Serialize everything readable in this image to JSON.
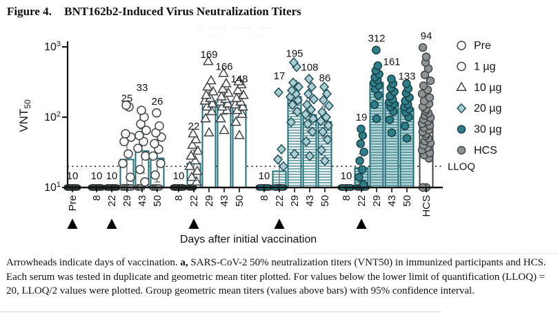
{
  "figure_label": "Figure 4.",
  "figure_title": "BNT162b2-Induced Virus Neutralization Titers",
  "artifact_marks": {
    "row1": ".. ....  ....  ...",
    "row2": "......        ......"
  },
  "caption": {
    "part1": "Arrowheads indicate days of vaccination. ",
    "panel": "a,",
    "part2": " SARS-CoV-2 50% neutralization titers (VNT50) in immunized participants and HCS. Each serum was tested in duplicate and geometric mean titer plotted. For values below the lower limit of quantification (LLOQ) = 20, LLOQ/2 values were plotted. Group geometric mean titers (values above bars) with 95% confidence interval."
  },
  "chart_data": {
    "type": "scatter",
    "subtype": "scatter-with-geometric-mean-bars",
    "title": "BNT162b2-Induced Virus Neutralization Titers",
    "xlabel": "Days after initial vaccination",
    "ylabel": {
      "base": "VNT",
      "sub": "50"
    },
    "yscale": "log",
    "ylim": [
      10,
      1000
    ],
    "yticks": [
      {
        "base": "10",
        "exp": "1",
        "value": 10
      },
      {
        "base": "10",
        "exp": "2",
        "value": 100
      },
      {
        "base": "10",
        "exp": "3",
        "value": 1000
      }
    ],
    "grid": "off",
    "legend_position": "right",
    "lloq": {
      "label": "LLOQ",
      "value": 20
    },
    "colors": {
      "teal_outline": "#1e6f78",
      "teal_point": "#2f7e88",
      "teal_light": "#a9cdd2",
      "hatch_bg_20": "#f3f8f8",
      "hatch_bg_30": "#b9d8da",
      "gray_point": "#8e9396",
      "dark_point": "#35393b",
      "black": "#111111"
    },
    "legend": [
      {
        "label": "Pre",
        "marker": "openCircle"
      },
      {
        "label": "1 µg",
        "marker": "openCircle"
      },
      {
        "label": "10 µg",
        "marker": "triangle"
      },
      {
        "label": "20 µg",
        "marker": "diamond"
      },
      {
        "label": "30 µg",
        "marker": "tealCircle"
      },
      {
        "label": "HCS",
        "marker": "grayCircle"
      }
    ],
    "groups": [
      {
        "name": "Pre",
        "marker": "openCircle",
        "bar": "none",
        "columns": [
          {
            "tick": "Pre",
            "label": "10",
            "gmt": 10,
            "arrow": true,
            "points": [
              10,
              10,
              10,
              10,
              10,
              10,
              10,
              10,
              10,
              10,
              10,
              10
            ]
          }
        ]
      },
      {
        "name": "1 µg",
        "marker": "openCircle",
        "bar": "open",
        "columns": [
          {
            "tick": "8",
            "label": "10",
            "gmt": 10,
            "points": [
              10,
              10,
              10,
              10,
              10,
              10,
              10,
              10,
              10,
              10,
              10,
              10
            ]
          },
          {
            "tick": "22",
            "label": "10",
            "gmt": 10,
            "arrow": true,
            "points": [
              10,
              10,
              10,
              10,
              10,
              10,
              10,
              10,
              10,
              10,
              10,
              10
            ]
          },
          {
            "tick": "29",
            "label": "25",
            "gmt": 25,
            "ci": [
              11,
              57
            ],
            "ldy": -7,
            "points": [
              10,
              10,
              10,
              10,
              14,
              22,
              30,
              45,
              52,
              58,
              140,
              148
            ]
          },
          {
            "tick": "43",
            "label": "33",
            "gmt": 33,
            "ci": [
              16,
              68
            ],
            "ldy": 16,
            "points": [
              10,
              10,
              12,
              18,
              28,
              36,
              45,
              55,
              65,
              80,
              100,
              125
            ]
          },
          {
            "tick": "50",
            "label": "26",
            "gmt": 26,
            "ci": [
              12,
              56
            ],
            "points": [
              10,
              10,
              10,
              15,
              22,
              28,
              35,
              42,
              52,
              60,
              75,
              115
            ]
          }
        ]
      },
      {
        "name": "10 µg",
        "marker": "triangle",
        "bar": "open",
        "columns": [
          {
            "tick": "8",
            "label": "10",
            "gmt": 10,
            "points": [
              10,
              10,
              10,
              10,
              10,
              10,
              10,
              10,
              10,
              10,
              10,
              10
            ]
          },
          {
            "tick": "22",
            "label": "22",
            "gmt": 22,
            "ci": [
              14,
              34
            ],
            "ldy": -6,
            "arrow": true,
            "points": [
              10,
              10,
              12,
              14,
              17,
              20,
              24,
              28,
              33,
              40,
              48,
              58
            ]
          },
          {
            "tick": "29",
            "label": "169",
            "gmt": 169,
            "ci": [
              110,
              300
            ],
            "ldy": -7,
            "points": [
              60,
              95,
              120,
              140,
              155,
              170,
              185,
              205,
              230,
              270,
              330,
              620
            ]
          },
          {
            "tick": "43",
            "label": "166",
            "gmt": 166,
            "ci": [
              110,
              250
            ],
            "ldy": -7,
            "points": [
              65,
              95,
              125,
              140,
              155,
              165,
              180,
              195,
              220,
              250,
              300,
              420
            ]
          },
          {
            "tick": "50",
            "label": "148",
            "gmt": 148,
            "ci": [
              100,
              225
            ],
            "ldy": -13,
            "points": [
              55,
              85,
              110,
              125,
              140,
              150,
              165,
              185,
              205,
              240,
              290,
              320
            ]
          }
        ]
      },
      {
        "name": "20 µg",
        "marker": "diamond",
        "bar": "hatch",
        "lowdark": "#266d76",
        "columns": [
          {
            "tick": "8",
            "label": "10",
            "gmt": 10,
            "points": [
              10,
              10,
              10,
              10,
              10,
              10,
              10,
              10,
              10,
              10,
              10,
              10
            ]
          },
          {
            "tick": "22",
            "label": "17",
            "gmt": 17,
            "ci": [
              11,
              27
            ],
            "ldy": 7,
            "arrow": true,
            "points": [
              10,
              10,
              10,
              10,
              10,
              10,
              10,
              10,
              20,
              25,
              35,
              225
            ]
          },
          {
            "tick": "29",
            "label": "195",
            "gmt": 195,
            "ci": [
              115,
              330
            ],
            "ldy": -4,
            "points": [
              30,
              85,
              120,
              150,
              175,
              195,
              215,
              240,
              270,
              310,
              520,
              600
            ]
          },
          {
            "tick": "43",
            "label": "108",
            "gmt": 108,
            "ci": [
              63,
              185
            ],
            "points": [
              28,
              45,
              62,
              80,
              95,
              110,
              128,
              150,
              180,
              215,
              270,
              350
            ]
          },
          {
            "tick": "50",
            "label": "86",
            "gmt": 86,
            "ci": [
              52,
              143
            ],
            "ldy": -4,
            "points": [
              24,
              34,
              48,
              62,
              76,
              88,
              100,
              118,
              145,
              175,
              215,
              270
            ]
          }
        ]
      },
      {
        "name": "30 µg",
        "marker": "tealCircle",
        "bar": "hatchfill",
        "lowdark": "#266d76",
        "spread": 0.6,
        "columns": [
          {
            "tick": "8",
            "label": "10",
            "gmt": 10,
            "points": [
              10,
              10,
              10,
              10,
              10,
              10,
              10,
              10,
              10,
              10,
              10,
              10
            ]
          },
          {
            "tick": "22",
            "label": "19",
            "gmt": 19,
            "ci": [
              12,
              30
            ],
            "arrow": true,
            "points": [
              10,
              10,
              10,
              10,
              11,
              14,
              18,
              24,
              32,
              42,
              55,
              68
            ]
          },
          {
            "tick": "29",
            "label": "312",
            "gmt": 312,
            "ci": [
              205,
              475
            ],
            "points": [
              95,
              150,
              205,
              250,
              285,
              310,
              340,
              370,
              410,
              460,
              540,
              900
            ]
          },
          {
            "tick": "43",
            "label": "161",
            "gmt": 161,
            "ci": [
              112,
              232
            ],
            "ldy": 8,
            "points": [
              60,
              92,
              120,
              140,
              155,
              165,
              180,
              200,
              230,
              260,
              300,
              350
            ]
          },
          {
            "tick": "50",
            "label": "133",
            "gmt": 133,
            "ci": [
              94,
              188
            ],
            "ldy": -6,
            "points": [
              50,
              75,
              100,
              118,
              130,
              140,
              152,
              170,
              190,
              220,
              255,
              300
            ]
          }
        ]
      },
      {
        "name": "HCS",
        "marker": "grayCircle",
        "bar": "openGray",
        "columns": [
          {
            "tick": "HCS",
            "label": "94",
            "gmt": 94,
            "ci": [
              70,
              126
            ],
            "points": [
              10,
              10,
              26,
              29,
              31,
              34,
              37,
              40,
              43,
              46,
              50,
              54,
              58,
              62,
              66,
              71,
              76,
              81,
              87,
              93,
              99,
              106,
              114,
              122,
              131,
              141,
              155,
              170,
              190,
              215,
              245,
              280,
              330,
              400,
              490,
              600,
              720,
              980
            ]
          }
        ]
      }
    ]
  }
}
